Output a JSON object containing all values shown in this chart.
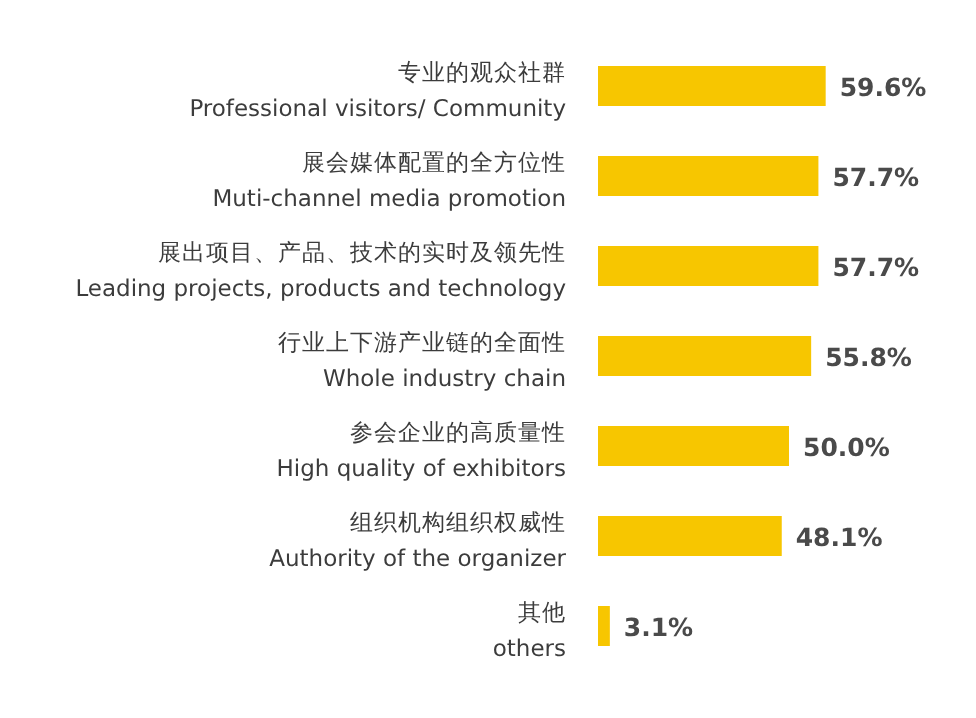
{
  "chart_data": {
    "type": "bar",
    "orientation": "horizontal",
    "color": "#f7c600",
    "categories": [
      "专业的观众社群\nProfessional visitors/ Community",
      "展会媒体配置的全方位性\nMuti-channel media promotion",
      "展出项目、产品、技术的实时及领先性\nLeading projects, products and technology",
      "行业上下游产业链的全面性\nWhole industry chain",
      "参会企业的高质量性\nHigh quality of exhibitors",
      "组织机构组织权威性\nAuthority of the organizer",
      "其他\nothers"
    ],
    "values": [
      59.6,
      57.7,
      57.7,
      55.8,
      50.0,
      48.1,
      3.1
    ],
    "value_labels": [
      "59.6%",
      "57.7%",
      "57.7%",
      "55.8%",
      "50.0%",
      "48.1%",
      "3.1%"
    ]
  }
}
